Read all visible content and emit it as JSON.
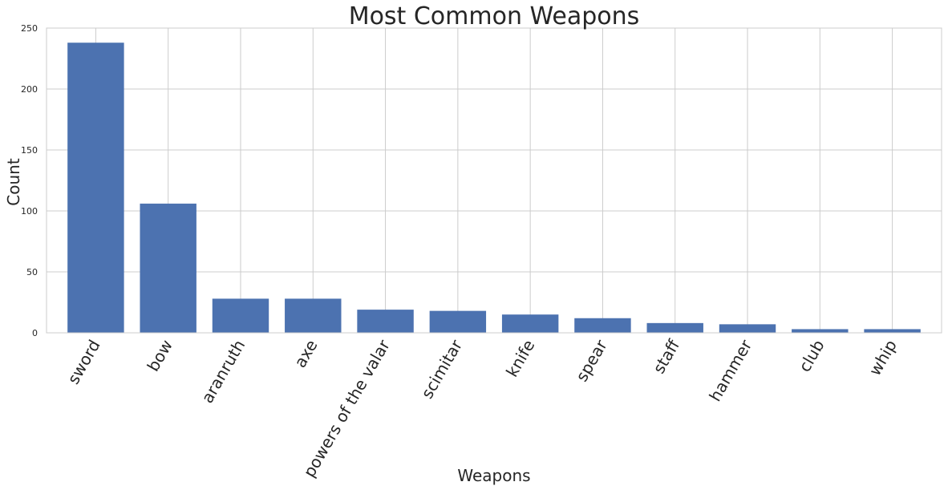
{
  "chart_data": {
    "type": "bar",
    "title": "Most Common Weapons",
    "xlabel": "Weapons",
    "ylabel": "Count",
    "categories": [
      "sword",
      "bow",
      "aranruth",
      "axe",
      "powers of the valar",
      "scimitar",
      "knife",
      "spear",
      "staff",
      "hammer",
      "club",
      "whip"
    ],
    "values": [
      238,
      106,
      28,
      28,
      19,
      18,
      15,
      12,
      8,
      7,
      3,
      3
    ],
    "ylim": [
      0,
      250
    ],
    "yticks": [
      0,
      50,
      100,
      150,
      200,
      250
    ],
    "grid": true,
    "bar_color": "#4c72b0"
  }
}
